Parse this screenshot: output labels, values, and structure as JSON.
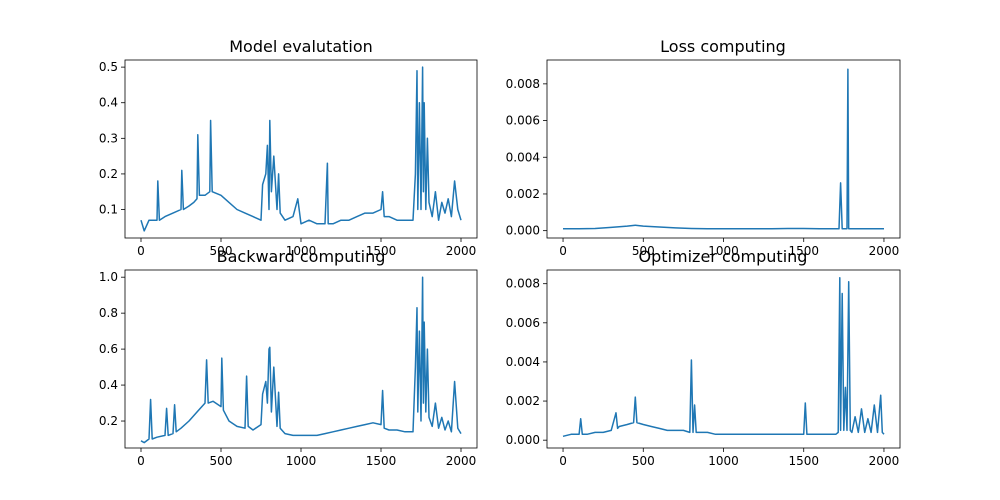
{
  "chart_data": [
    {
      "type": "line",
      "title": "Model evalutation",
      "xlabel": "",
      "ylabel": "",
      "xlim": [
        -100,
        2100
      ],
      "ylim": [
        0.02,
        0.52
      ],
      "xticks": [
        0,
        500,
        1000,
        1500,
        2000
      ],
      "yticks": [
        0.1,
        0.2,
        0.3,
        0.4,
        0.5
      ],
      "ytick_labels": [
        "0.1",
        "0.2",
        "0.3",
        "0.4",
        "0.5"
      ],
      "grid": false,
      "color": "#1f77b4",
      "series": [
        {
          "x": [
            0,
            20,
            50,
            100,
            105,
            115,
            150,
            200,
            250,
            255,
            265,
            300,
            330,
            350,
            355,
            365,
            400,
            430,
            435,
            445,
            500,
            550,
            600,
            650,
            700,
            750,
            760,
            780,
            790,
            800,
            805,
            815,
            830,
            850,
            860,
            870,
            900,
            950,
            980,
            1000,
            1050,
            1100,
            1150,
            1165,
            1170,
            1180,
            1200,
            1250,
            1300,
            1350,
            1400,
            1450,
            1500,
            1510,
            1520,
            1550,
            1600,
            1650,
            1700,
            1715,
            1725,
            1730,
            1740,
            1750,
            1760,
            1765,
            1770,
            1780,
            1790,
            1800,
            1820,
            1840,
            1860,
            1880,
            1900,
            1920,
            1940,
            1960,
            1980,
            2000
          ],
          "y": [
            0.07,
            0.04,
            0.07,
            0.07,
            0.18,
            0.07,
            0.08,
            0.09,
            0.1,
            0.21,
            0.1,
            0.11,
            0.12,
            0.13,
            0.31,
            0.14,
            0.14,
            0.15,
            0.35,
            0.15,
            0.14,
            0.12,
            0.1,
            0.09,
            0.08,
            0.07,
            0.17,
            0.2,
            0.28,
            0.1,
            0.35,
            0.15,
            0.25,
            0.1,
            0.2,
            0.09,
            0.07,
            0.08,
            0.13,
            0.06,
            0.07,
            0.06,
            0.06,
            0.23,
            0.06,
            0.06,
            0.06,
            0.07,
            0.07,
            0.08,
            0.09,
            0.09,
            0.1,
            0.15,
            0.08,
            0.08,
            0.07,
            0.07,
            0.07,
            0.2,
            0.49,
            0.1,
            0.4,
            0.1,
            0.5,
            0.15,
            0.4,
            0.1,
            0.3,
            0.12,
            0.08,
            0.15,
            0.07,
            0.12,
            0.09,
            0.13,
            0.08,
            0.18,
            0.1,
            0.07
          ]
        }
      ]
    },
    {
      "type": "line",
      "title": "Loss computing",
      "xlabel": "",
      "ylabel": "",
      "xlim": [
        -100,
        2100
      ],
      "ylim": [
        -0.0004,
        0.0093
      ],
      "xticks": [
        0,
        500,
        1000,
        1500,
        2000
      ],
      "yticks": [
        0.0,
        0.002,
        0.004,
        0.006,
        0.008
      ],
      "ytick_labels": [
        "0.000",
        "0.002",
        "0.004",
        "0.006",
        "0.008"
      ],
      "grid": false,
      "color": "#1f77b4",
      "series": [
        {
          "x": [
            0,
            100,
            200,
            300,
            400,
            450,
            500,
            600,
            700,
            800,
            900,
            1000,
            1100,
            1200,
            1300,
            1400,
            1500,
            1600,
            1700,
            1720,
            1730,
            1740,
            1750,
            1760,
            1770,
            1775,
            1780,
            1790,
            1800,
            1850,
            1900,
            1950,
            2000
          ],
          "y": [
            0.0001,
            0.0001,
            0.00012,
            0.00018,
            0.00025,
            0.0003,
            0.00025,
            0.0002,
            0.00015,
            0.00012,
            0.0001,
            0.0001,
            0.0001,
            0.0001,
            0.0001,
            0.00012,
            0.00012,
            0.0001,
            0.0001,
            0.0001,
            0.0026,
            0.0001,
            0.0001,
            0.0001,
            0.0001,
            0.0088,
            0.0001,
            0.0001,
            0.0001,
            0.0001,
            0.0001,
            0.0001,
            0.0001
          ]
        }
      ]
    },
    {
      "type": "line",
      "title": "Backward computing",
      "xlabel": "",
      "ylabel": "",
      "xlim": [
        -100,
        2100
      ],
      "ylim": [
        0.05,
        1.04
      ],
      "xticks": [
        0,
        500,
        1000,
        1500,
        2000
      ],
      "yticks": [
        0.2,
        0.4,
        0.6,
        0.8,
        1.0
      ],
      "ytick_labels": [
        "0.2",
        "0.4",
        "0.6",
        "0.8",
        "1.0"
      ],
      "grid": false,
      "color": "#1f77b4",
      "series": [
        {
          "x": [
            0,
            20,
            50,
            60,
            70,
            100,
            150,
            160,
            170,
            200,
            210,
            220,
            250,
            300,
            350,
            400,
            410,
            420,
            450,
            500,
            505,
            515,
            550,
            600,
            650,
            660,
            670,
            700,
            750,
            760,
            780,
            790,
            800,
            805,
            815,
            830,
            850,
            860,
            870,
            900,
            950,
            1000,
            1050,
            1100,
            1150,
            1200,
            1250,
            1300,
            1350,
            1400,
            1450,
            1500,
            1510,
            1520,
            1550,
            1600,
            1650,
            1700,
            1715,
            1725,
            1730,
            1740,
            1750,
            1760,
            1765,
            1770,
            1780,
            1790,
            1800,
            1820,
            1840,
            1860,
            1880,
            1900,
            1920,
            1940,
            1960,
            1980,
            2000
          ],
          "y": [
            0.09,
            0.08,
            0.1,
            0.32,
            0.1,
            0.11,
            0.12,
            0.27,
            0.12,
            0.13,
            0.29,
            0.14,
            0.16,
            0.2,
            0.25,
            0.3,
            0.54,
            0.3,
            0.31,
            0.28,
            0.55,
            0.26,
            0.2,
            0.17,
            0.16,
            0.45,
            0.17,
            0.15,
            0.18,
            0.35,
            0.42,
            0.3,
            0.6,
            0.61,
            0.25,
            0.5,
            0.17,
            0.36,
            0.16,
            0.13,
            0.12,
            0.12,
            0.12,
            0.12,
            0.13,
            0.14,
            0.15,
            0.16,
            0.17,
            0.18,
            0.19,
            0.18,
            0.37,
            0.16,
            0.15,
            0.15,
            0.14,
            0.14,
            0.5,
            0.83,
            0.25,
            0.7,
            0.2,
            1.0,
            0.3,
            0.75,
            0.25,
            0.6,
            0.22,
            0.17,
            0.3,
            0.16,
            0.22,
            0.15,
            0.2,
            0.14,
            0.42,
            0.16,
            0.13
          ]
        }
      ]
    },
    {
      "type": "line",
      "title": "Optimizer computing",
      "xlabel": "",
      "ylabel": "",
      "xlim": [
        -100,
        2100
      ],
      "ylim": [
        -0.0004,
        0.0087
      ],
      "xticks": [
        0,
        500,
        1000,
        1500,
        2000
      ],
      "yticks": [
        0.0,
        0.002,
        0.004,
        0.006,
        0.008
      ],
      "ytick_labels": [
        "0.000",
        "0.002",
        "0.004",
        "0.006",
        "0.008"
      ],
      "grid": false,
      "color": "#1f77b4",
      "series": [
        {
          "x": [
            0,
            50,
            100,
            110,
            120,
            150,
            200,
            250,
            300,
            330,
            340,
            350,
            400,
            440,
            450,
            460,
            500,
            550,
            600,
            650,
            700,
            750,
            790,
            800,
            810,
            820,
            830,
            850,
            900,
            950,
            1000,
            1050,
            1100,
            1150,
            1200,
            1250,
            1300,
            1350,
            1400,
            1450,
            1500,
            1510,
            1520,
            1550,
            1600,
            1650,
            1700,
            1715,
            1725,
            1730,
            1740,
            1750,
            1760,
            1770,
            1780,
            1790,
            1800,
            1820,
            1840,
            1860,
            1880,
            1900,
            1920,
            1940,
            1960,
            1980,
            1990,
            2000
          ],
          "y": [
            0.0002,
            0.0003,
            0.0003,
            0.0011,
            0.0003,
            0.0003,
            0.0004,
            0.0004,
            0.0005,
            0.0014,
            0.0006,
            0.0007,
            0.0008,
            0.0009,
            0.0022,
            0.0009,
            0.0008,
            0.0007,
            0.0006,
            0.0005,
            0.0005,
            0.0005,
            0.0004,
            0.0041,
            0.0004,
            0.0018,
            0.0004,
            0.0004,
            0.0004,
            0.0003,
            0.0003,
            0.0003,
            0.0003,
            0.0003,
            0.0003,
            0.0003,
            0.0003,
            0.0003,
            0.0003,
            0.0003,
            0.0003,
            0.0019,
            0.0003,
            0.0003,
            0.0003,
            0.0003,
            0.0003,
            0.0004,
            0.0083,
            0.0005,
            0.0075,
            0.0005,
            0.0027,
            0.0005,
            0.0081,
            0.0005,
            0.0004,
            0.0012,
            0.0004,
            0.0016,
            0.0004,
            0.0011,
            0.0004,
            0.0018,
            0.0004,
            0.0023,
            0.0004,
            0.0003
          ]
        }
      ]
    }
  ]
}
